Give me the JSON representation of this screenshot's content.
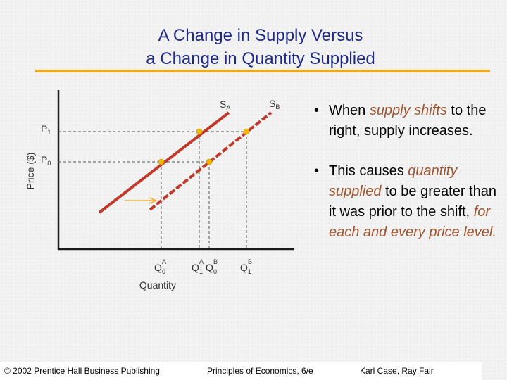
{
  "slide": {
    "title_line1": "A Change in Supply Versus",
    "title_line2": "a Change in Quantity Supplied"
  },
  "diagram": {
    "y_axis_label": "Price ($)",
    "x_axis_label": "Quantity",
    "price_levels": [
      {
        "label": "P",
        "sub": "1"
      },
      {
        "label": "P",
        "sub": "0"
      }
    ],
    "curves": [
      {
        "label": "S",
        "sub": "A",
        "color": "#c0392b"
      },
      {
        "label": "S",
        "sub": "B",
        "color": "#c0392b"
      }
    ],
    "quantities": [
      {
        "label": "Q",
        "sup": "A",
        "sub": "0"
      },
      {
        "label": "Q",
        "sup": "A",
        "sub": "1"
      },
      {
        "label": "Q",
        "sup": "B",
        "sub": "0"
      },
      {
        "label": "Q",
        "sup": "B",
        "sub": "1"
      }
    ],
    "point_color": "#f5b800",
    "arrow_color": "#f0a81e",
    "axis_color": "#1a1a1a"
  },
  "bullets": [
    {
      "dot": "•",
      "parts": [
        {
          "text": "When ",
          "hl": false
        },
        {
          "text": "supply shifts",
          "hl": true
        },
        {
          "text": " to the right, supply increases.",
          "hl": false
        }
      ]
    },
    {
      "dot": "•",
      "parts": [
        {
          "text": " This causes ",
          "hl": false
        },
        {
          "text": "quantity supplied",
          "hl": true
        },
        {
          "text": " to be greater than it was prior to the shift, ",
          "hl": false
        },
        {
          "text": "for each and every price level.",
          "hl": true
        }
      ]
    }
  ],
  "footer": {
    "left": "© 2002 Prentice Hall Business Publishing",
    "center": "Principles of Economics, 6/e",
    "right": "Karl Case, Ray Fair"
  }
}
